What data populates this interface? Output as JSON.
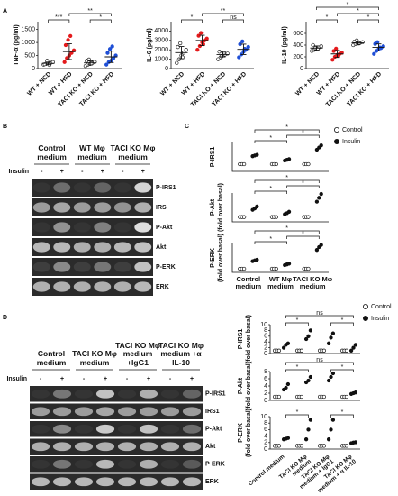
{
  "panel_labels": [
    "A",
    "B",
    "C",
    "D"
  ],
  "chart_data": [
    {
      "type": "strip",
      "ylabel": "TNF-α (pg/ml)",
      "categories": [
        "WT + NCD",
        "WT + HFD",
        "TACI KO + NCD",
        "TACI KO + HFD"
      ],
      "colors": [
        "#222222",
        "#e41a1c",
        "#222222",
        "#1f4fd6"
      ],
      "points": [
        [
          150,
          180,
          200,
          220,
          250,
          170,
          300,
          140
        ],
        [
          250,
          400,
          500,
          600,
          700,
          900,
          1100,
          1250
        ],
        [
          100,
          150,
          180,
          220,
          260,
          300,
          350,
          200
        ],
        [
          150,
          250,
          300,
          400,
          500,
          600,
          750,
          850
        ]
      ],
      "means": [
        200,
        650,
        220,
        450
      ],
      "errors": [
        50,
        300,
        80,
        220
      ],
      "ylim": [
        0,
        1800
      ],
      "yticks": [
        0,
        500,
        1000,
        1500
      ],
      "annotations": [
        "***",
        "*",
        "**"
      ]
    },
    {
      "type": "strip",
      "ylabel": "IL-6 (pg/ml)",
      "categories": [
        "WT + NCD",
        "WT + HFD",
        "TACI KO + NCD",
        "TACI KO + HFD"
      ],
      "colors": [
        "#222222",
        "#e41a1c",
        "#222222",
        "#1f4fd6"
      ],
      "points": [
        [
          600,
          1000,
          1400,
          1700,
          2000,
          2300,
          2700,
          1200
        ],
        [
          2000,
          2400,
          2800,
          3000,
          3200,
          3500,
          3800,
          2600
        ],
        [
          1000,
          1200,
          1400,
          1500,
          1600,
          1800,
          1300,
          1700
        ],
        [
          1200,
          1500,
          1800,
          2000,
          2300,
          2600,
          2900,
          2100
        ]
      ],
      "means": [
        1700,
        3000,
        1500,
        2050
      ],
      "errors": [
        650,
        550,
        250,
        550
      ],
      "ylim": [
        0,
        5000
      ],
      "yticks": [
        0,
        1000,
        2000,
        3000,
        4000
      ],
      "annotations": [
        "*",
        "ns",
        "**"
      ]
    },
    {
      "type": "strip",
      "ylabel": "IL-10 (pg/ml)",
      "categories": [
        "WT + NCD",
        "WT + HFD",
        "TACI KO + NCD",
        "TACI KO + HFD"
      ],
      "colors": [
        "#222222",
        "#e41a1c",
        "#222222",
        "#1f4fd6"
      ],
      "points": [
        [
          300,
          320,
          340,
          360,
          380,
          400,
          350,
          330
        ],
        [
          150,
          200,
          230,
          250,
          270,
          300,
          340,
          220
        ],
        [
          400,
          420,
          430,
          440,
          450,
          460,
          480,
          430
        ],
        [
          250,
          300,
          330,
          350,
          380,
          420,
          450,
          360
        ]
      ],
      "means": [
        350,
        250,
        440,
        360
      ],
      "errors": [
        35,
        60,
        25,
        60
      ],
      "ylim": [
        0,
        800
      ],
      "yticks": [
        0,
        200,
        400,
        600
      ],
      "annotations": [
        "*",
        "*",
        "*",
        "*"
      ]
    },
    {
      "type": "paired-strip",
      "ylabel": "P-IRS1",
      "ylim": [
        0,
        4
      ],
      "series": [
        {
          "name": "Control",
          "values": [
            [
              1,
              1,
              1
            ],
            [
              1,
              1,
              1
            ],
            [
              1,
              1,
              1
            ]
          ]
        },
        {
          "name": "Insulin",
          "values": [
            [
              2.1,
              2.2,
              2.3
            ],
            [
              1.5,
              1.6,
              1.7
            ],
            [
              3.0,
              3.3,
              3.6
            ]
          ]
        }
      ],
      "annotations": [
        "*",
        "*",
        "*"
      ]
    },
    {
      "type": "paired-strip",
      "ylabel": "P-Akt",
      "ylabel2": "(fold over basal)",
      "ylim": [
        0,
        6
      ],
      "series": [
        {
          "values": [
            [
              1,
              1,
              1
            ],
            [
              1,
              1,
              1
            ],
            [
              1,
              1,
              1
            ]
          ]
        },
        {
          "values": [
            [
              2.5,
              2.8,
              3.2
            ],
            [
              1.6,
              1.8,
              2.1
            ],
            [
              4.2,
              5,
              5.8
            ]
          ]
        }
      ],
      "annotations": [
        "*",
        "*",
        "*"
      ]
    },
    {
      "type": "paired-strip",
      "ylabel": "P-ERK",
      "ylabel2": "(fold over basal)",
      "ylim": [
        0,
        8
      ],
      "categories": [
        "Control medium",
        "WT Mφ medium",
        "TACI KO Mφ medium"
      ],
      "series": [
        {
          "values": [
            [
              1,
              1,
              1
            ],
            [
              1,
              1,
              1
            ],
            [
              1,
              1,
              1
            ]
          ]
        },
        {
          "values": [
            [
              3.1,
              3.3,
              3.5
            ],
            [
              2.0,
              2.2,
              2.4
            ],
            [
              6.2,
              7,
              7.6
            ]
          ]
        }
      ],
      "annotations": [
        "*",
        "*",
        "*"
      ]
    },
    {
      "type": "paired-strip",
      "ylabel": "P-IRS1",
      "ylabel2": "(fold over basal)",
      "ylim": [
        0,
        10
      ],
      "yticks": [
        0,
        2,
        4,
        6,
        8,
        10
      ],
      "series": [
        {
          "name": "Control",
          "values": [
            [
              1,
              1,
              1
            ],
            [
              1,
              1,
              1
            ],
            [
              1,
              1,
              1
            ],
            [
              1,
              1,
              1
            ]
          ]
        },
        {
          "name": "Insulin",
          "values": [
            [
              2,
              3,
              3.5
            ],
            [
              5,
              6,
              8
            ],
            [
              3.5,
              5.5,
              7
            ],
            [
              1,
              2,
              3
            ]
          ]
        }
      ],
      "annotations": [
        "ns",
        "*",
        "*"
      ]
    },
    {
      "type": "paired-strip",
      "ylabel": "P-Akt",
      "ylabel2": "(fold over basal)",
      "ylim": [
        0,
        8
      ],
      "yticks": [
        0,
        2,
        4,
        6,
        8
      ],
      "series": [
        {
          "values": [
            [
              1,
              1,
              1
            ],
            [
              1,
              1,
              1
            ],
            [
              1,
              1,
              1
            ],
            [
              1,
              1,
              1
            ]
          ]
        },
        {
          "values": [
            [
              3,
              3.5,
              4.5
            ],
            [
              5,
              5.5,
              6.5
            ],
            [
              5.5,
              6.5,
              7.5
            ],
            [
              1.8,
              2,
              2.2
            ]
          ]
        }
      ],
      "annotations": [
        "ns",
        "*",
        "*"
      ]
    },
    {
      "type": "paired-strip",
      "ylabel": "P-ERK",
      "ylabel2": "(fold over basal)",
      "ylim": [
        0,
        10
      ],
      "yticks": [
        0,
        2,
        4,
        6,
        8,
        10
      ],
      "categories": [
        "Control medium",
        "TACI KO Mφ medium",
        "TACI KO Mφ medium + IgG1",
        "TACI KO Mφ medium + α IL-10"
      ],
      "series": [
        {
          "values": [
            [
              1,
              1,
              1
            ],
            [
              1,
              1,
              1
            ],
            [
              1,
              1,
              1
            ],
            [
              1,
              1,
              1
            ]
          ]
        },
        {
          "values": [
            [
              3,
              3.2,
              3.4
            ],
            [
              3,
              6,
              9
            ],
            [
              3,
              6,
              9
            ],
            [
              1.8,
              2,
              2.1
            ]
          ]
        }
      ],
      "annotations": [
        "*",
        "*"
      ]
    }
  ],
  "blot_B": {
    "columns": [
      "Control medium",
      "WT Mφ medium",
      "TACI KO Mφ medium"
    ],
    "row_label": "Insulin",
    "lanes": [
      "-",
      "+",
      "-",
      "+",
      "-",
      "+"
    ],
    "bands": [
      "P-IRS1",
      "IRS",
      "P-Akt",
      "Akt",
      "P-ERK",
      "ERK"
    ]
  },
  "blot_D": {
    "columns": [
      "Control medium",
      "TACI KO Mφ medium",
      "TACI KO Mφ medium +IgG1",
      "TACI KO Mφ medium +α IL-10"
    ],
    "row_label": "Insulin",
    "lanes": [
      "-",
      "+",
      "-",
      "+",
      "-",
      "+",
      "-",
      "+"
    ],
    "bands": [
      "P-IRS1",
      "IRS1",
      "P-Akt",
      "Akt",
      "P-ERK",
      "ERK"
    ]
  }
}
